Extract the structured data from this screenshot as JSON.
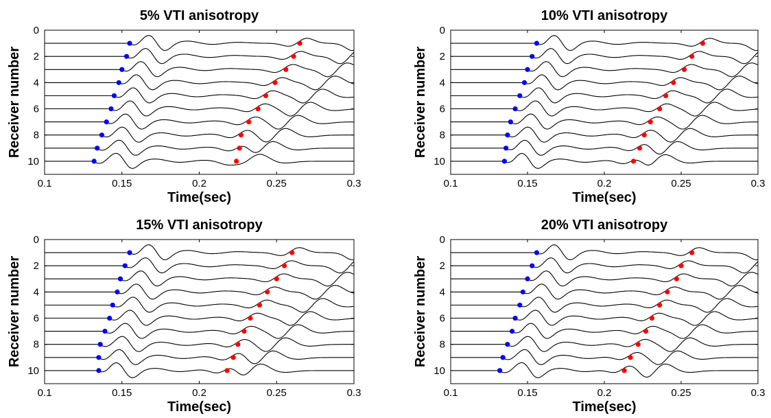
{
  "chart_data": [
    {
      "type": "line",
      "title": "5% VTI anisotropy",
      "xlabel": "Time(sec)",
      "ylabel": "Receiver number",
      "xlim": [
        0.1,
        0.3
      ],
      "ylim": [
        0,
        11
      ],
      "y_reversed": true,
      "xticks": [
        0.1,
        0.15,
        0.2,
        0.25,
        0.3
      ],
      "xtick_labels": [
        "0.1",
        "0.15",
        "0.2",
        "0.25",
        "0.3"
      ],
      "yticks": [
        0,
        2,
        4,
        6,
        8,
        10
      ],
      "ytick_labels": [
        "0",
        "2",
        "4",
        "6",
        "8",
        "10"
      ],
      "receivers": [
        1,
        2,
        3,
        4,
        5,
        6,
        7,
        8,
        9,
        10
      ],
      "blue_picks_time": [
        0.155,
        0.153,
        0.15,
        0.148,
        0.145,
        0.143,
        0.14,
        0.137,
        0.134,
        0.132
      ],
      "red_picks_time": [
        0.265,
        0.261,
        0.256,
        0.249,
        0.243,
        0.238,
        0.232,
        0.227,
        0.226,
        0.224
      ],
      "first_arrival_time": [
        0.168,
        0.166,
        0.163,
        0.16,
        0.158,
        0.156,
        0.153,
        0.151,
        0.149,
        0.147
      ],
      "diagonal_event_time": [
        0.3,
        0.292,
        0.284,
        0.276,
        0.268,
        0.26,
        0.252,
        0.244,
        0.236,
        0.228
      ]
    },
    {
      "type": "line",
      "title": "10% VTI anisotropy",
      "xlabel": "Time(sec)",
      "ylabel": "Receiver number",
      "xlim": [
        0.1,
        0.3
      ],
      "ylim": [
        0,
        11
      ],
      "y_reversed": true,
      "xticks": [
        0.1,
        0.15,
        0.2,
        0.25,
        0.3
      ],
      "xtick_labels": [
        "0.1",
        "0.15",
        "0.2",
        "0.25",
        "0.3"
      ],
      "yticks": [
        0,
        2,
        4,
        6,
        8,
        10
      ],
      "ytick_labels": [
        "0",
        "2",
        "4",
        "6",
        "8",
        "10"
      ],
      "receivers": [
        1,
        2,
        3,
        4,
        5,
        6,
        7,
        8,
        9,
        10
      ],
      "blue_picks_time": [
        0.156,
        0.153,
        0.15,
        0.148,
        0.145,
        0.142,
        0.139,
        0.137,
        0.136,
        0.135
      ],
      "red_picks_time": [
        0.264,
        0.257,
        0.252,
        0.245,
        0.24,
        0.236,
        0.23,
        0.226,
        0.223,
        0.219
      ],
      "first_arrival_time": [
        0.168,
        0.166,
        0.163,
        0.16,
        0.158,
        0.156,
        0.153,
        0.151,
        0.149,
        0.147
      ],
      "diagonal_event_time": [
        0.3,
        0.292,
        0.284,
        0.276,
        0.268,
        0.26,
        0.252,
        0.244,
        0.236,
        0.228
      ]
    },
    {
      "type": "line",
      "title": "15% VTI anisotropy",
      "xlabel": "Time(sec)",
      "ylabel": "Receiver number",
      "xlim": [
        0.1,
        0.3
      ],
      "ylim": [
        0,
        11
      ],
      "y_reversed": true,
      "xticks": [
        0.1,
        0.15,
        0.2,
        0.25,
        0.3
      ],
      "xtick_labels": [
        "0.1",
        "0.15",
        "0.2",
        "0.25",
        "0.3"
      ],
      "yticks": [
        0,
        2,
        4,
        6,
        8,
        10
      ],
      "ytick_labels": [
        "0",
        "2",
        "4",
        "6",
        "8",
        "10"
      ],
      "receivers": [
        1,
        2,
        3,
        4,
        5,
        6,
        7,
        8,
        9,
        10
      ],
      "blue_picks_time": [
        0.155,
        0.152,
        0.149,
        0.147,
        0.144,
        0.142,
        0.139,
        0.136,
        0.135,
        0.135
      ],
      "red_picks_time": [
        0.26,
        0.255,
        0.25,
        0.244,
        0.239,
        0.233,
        0.229,
        0.225,
        0.222,
        0.218
      ],
      "first_arrival_time": [
        0.168,
        0.166,
        0.163,
        0.16,
        0.158,
        0.156,
        0.153,
        0.151,
        0.149,
        0.147
      ],
      "diagonal_event_time": [
        0.3,
        0.292,
        0.284,
        0.276,
        0.268,
        0.26,
        0.252,
        0.244,
        0.236,
        0.228
      ]
    },
    {
      "type": "line",
      "title": "20% VTI anisotropy",
      "xlabel": "Time(sec)",
      "ylabel": "Receiver number",
      "xlim": [
        0.1,
        0.3
      ],
      "ylim": [
        0,
        11
      ],
      "y_reversed": true,
      "xticks": [
        0.1,
        0.15,
        0.2,
        0.25,
        0.3
      ],
      "xtick_labels": [
        "0.1",
        "0.15",
        "0.2",
        "0.25",
        "0.3"
      ],
      "yticks": [
        0,
        2,
        4,
        6,
        8,
        10
      ],
      "ytick_labels": [
        "0",
        "2",
        "4",
        "6",
        "8",
        "10"
      ],
      "receivers": [
        1,
        2,
        3,
        4,
        5,
        6,
        7,
        8,
        9,
        10
      ],
      "blue_picks_time": [
        0.156,
        0.153,
        0.15,
        0.147,
        0.145,
        0.142,
        0.14,
        0.137,
        0.134,
        0.132
      ],
      "red_picks_time": [
        0.257,
        0.25,
        0.247,
        0.241,
        0.236,
        0.231,
        0.227,
        0.222,
        0.217,
        0.213
      ],
      "first_arrival_time": [
        0.168,
        0.166,
        0.163,
        0.16,
        0.158,
        0.156,
        0.153,
        0.151,
        0.149,
        0.147
      ],
      "diagonal_event_time": [
        0.3,
        0.292,
        0.284,
        0.276,
        0.268,
        0.26,
        0.252,
        0.244,
        0.236,
        0.228
      ]
    }
  ],
  "colors": {
    "blue_pick": "#0000ff",
    "red_pick": "#ff0000",
    "trace": "#000000"
  }
}
